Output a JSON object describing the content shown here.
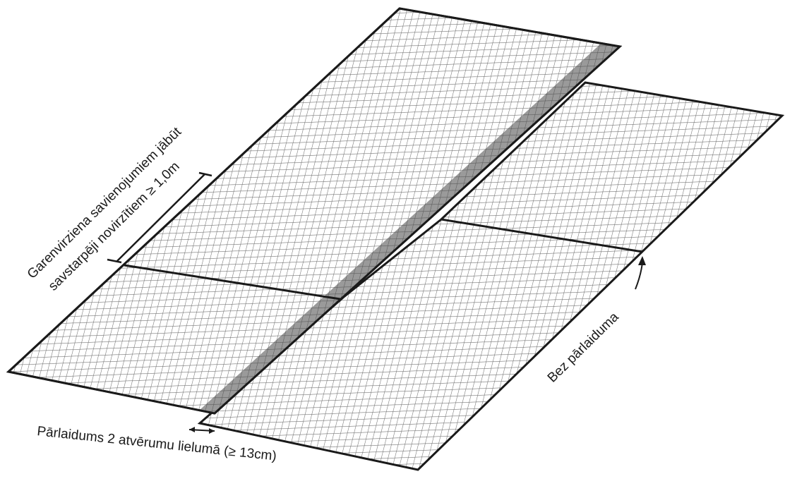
{
  "diagram": {
    "labels": {
      "longitudinal_line1": "Garenvirziena savienojumiem jābūt",
      "longitudinal_line2": "savstarpēji novirzītiem ≥ 1,0m",
      "no_overlap": "Bez pārlaiduma",
      "overlap": "Pārlaidums 2 atvērumu lielumā (≥ 13cm)"
    },
    "colors": {
      "mesh": "#6e6e6e",
      "edge": "#1a1a1a",
      "overlap_band": "#8a8a8a",
      "background": "#ffffff"
    }
  }
}
